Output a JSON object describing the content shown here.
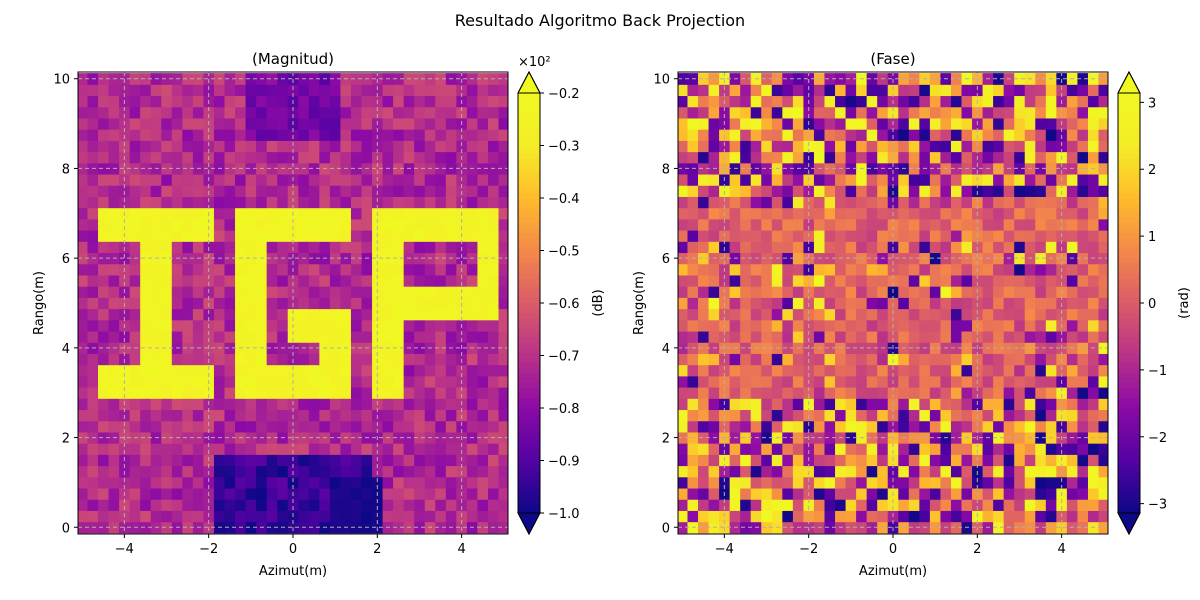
{
  "figure": {
    "suptitle": "Resultado Algoritmo Back Projection"
  },
  "chart_data": [
    {
      "type": "heatmap",
      "title": "(Magnitud)",
      "xlabel": "Azimut(m)",
      "ylabel": "Rango(m)",
      "colorbar_label": "(dB)",
      "colorbar_multiplier": "×10²",
      "colormap": "plasma",
      "x_range": [
        -5.1,
        5.1
      ],
      "y_range": [
        -0.15,
        10.15
      ],
      "x_ticks": [
        -4,
        -2,
        0,
        2,
        4
      ],
      "x_tick_labels": [
        "−4",
        "−2",
        "0",
        "2",
        "4"
      ],
      "y_ticks": [
        0,
        2,
        4,
        6,
        8,
        10
      ],
      "y_tick_labels": [
        "0",
        "2",
        "4",
        "6",
        "8",
        "10"
      ],
      "color_range": [
        -100,
        -20
      ],
      "colorbar_ticks": [
        -20,
        -30,
        -40,
        -50,
        -60,
        -70,
        -80,
        -90,
        -100
      ],
      "colorbar_tick_labels": [
        "−0.2",
        "−0.3",
        "−0.4",
        "−0.5",
        "−0.6",
        "−0.7",
        "−0.8",
        "−0.9",
        "−1.0"
      ],
      "colorbar_extend": "both",
      "grid": true,
      "grid_shape": [
        41,
        41
      ],
      "cell_size_m": 0.25,
      "bright_region_label": "IGP",
      "values": []
    },
    {
      "type": "heatmap",
      "title": "(Fase)",
      "xlabel": "Azimut(m)",
      "ylabel": "Rango(m)",
      "colorbar_label": "(rad)",
      "colormap": "plasma",
      "x_range": [
        -5.1,
        5.1
      ],
      "y_range": [
        -0.15,
        10.15
      ],
      "x_ticks": [
        -4,
        -2,
        0,
        2,
        4
      ],
      "x_tick_labels": [
        "−4",
        "−2",
        "0",
        "2",
        "4"
      ],
      "y_ticks": [
        0,
        2,
        4,
        6,
        8,
        10
      ],
      "y_tick_labels": [
        "0",
        "2",
        "4",
        "6",
        "8",
        "10"
      ],
      "color_range": [
        -3.14,
        3.14
      ],
      "colorbar_ticks": [
        3,
        2,
        1,
        0,
        -1,
        -2,
        -3
      ],
      "colorbar_tick_labels": [
        "3",
        "2",
        "1",
        "0",
        "−1",
        "−2",
        "−3"
      ],
      "colorbar_extend": "both",
      "grid": true,
      "grid_shape": [
        41,
        41
      ],
      "cell_size_m": 0.25,
      "values": []
    }
  ]
}
